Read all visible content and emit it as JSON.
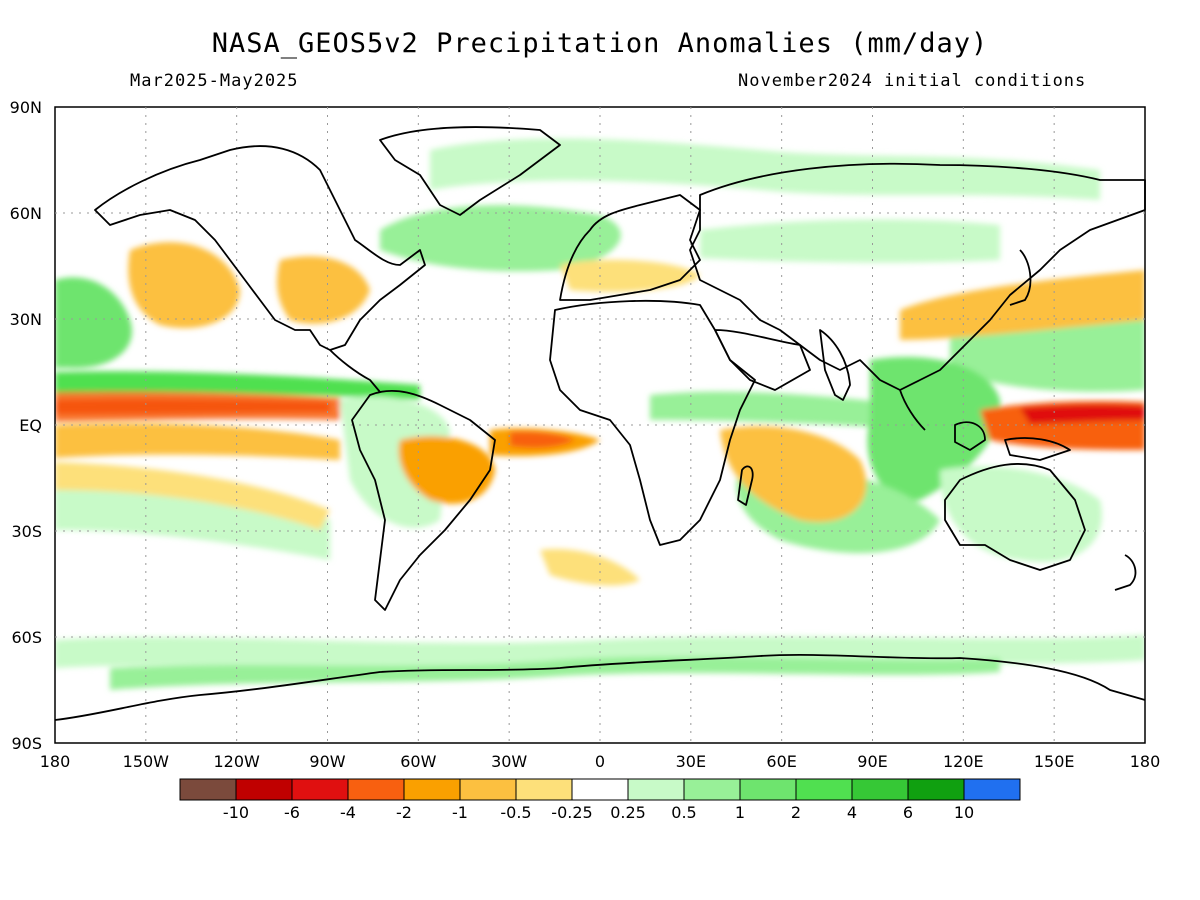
{
  "title": "NASA_GEOS5v2 Precipitation Anomalies (mm/day)",
  "subtitle_left": "Mar2025-May2025",
  "subtitle_right": "November2024 initial conditions",
  "map": {
    "projection": "equirectangular",
    "lon_range": [
      -180,
      180
    ],
    "lat_range": [
      -90,
      90
    ],
    "grid": "dotted",
    "lat_labels": [
      "90N",
      "60N",
      "30N",
      "EQ",
      "30S",
      "60S",
      "90S"
    ],
    "lon_labels": [
      "180",
      "150W",
      "120W",
      "90W",
      "60W",
      "30W",
      "0",
      "30E",
      "60E",
      "90E",
      "120E",
      "150E",
      "180"
    ]
  },
  "colorbar": {
    "colors": [
      "#7b4a3c",
      "#c00000",
      "#e01010",
      "#f86010",
      "#faa000",
      "#fcc040",
      "#fde07a",
      "#ffffff",
      "#c8fac8",
      "#98f098",
      "#6ee46e",
      "#50e050",
      "#36c836",
      "#10a010",
      "#2070f0"
    ],
    "labels": [
      "-10",
      "-6",
      "-4",
      "-2",
      "-1",
      "-0.5",
      "-0.25",
      "0.25",
      "0.5",
      "1",
      "2",
      "4",
      "6",
      "10"
    ]
  }
}
